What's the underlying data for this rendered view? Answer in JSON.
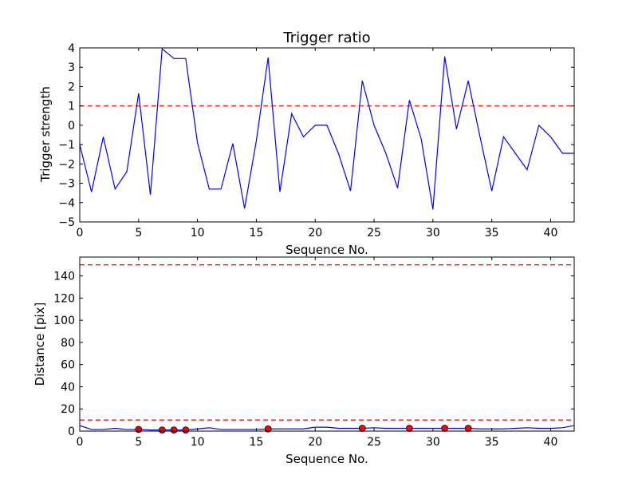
{
  "chart_data": [
    {
      "type": "line",
      "title": "Trigger ratio",
      "xlabel": "Sequence No.",
      "ylabel": "Trigger strength",
      "xlim": [
        0,
        42
      ],
      "ylim": [
        -5,
        4
      ],
      "xticks": [
        0,
        5,
        10,
        15,
        20,
        25,
        30,
        35,
        40
      ],
      "xtick_labels": [
        "0",
        "5",
        "10",
        "15",
        "20",
        "25",
        "30",
        "35",
        "40"
      ],
      "yticks": [
        -5,
        -4,
        -3,
        -2,
        -1,
        0,
        1,
        2,
        3,
        4
      ],
      "ytick_labels": [
        "−5",
        "−4",
        "−3",
        "−2",
        "−1",
        "0",
        "1",
        "2",
        "3",
        "4"
      ],
      "grid": false,
      "series": [
        {
          "color": "#0000ff",
          "x": [
            0,
            1,
            2,
            3,
            4,
            5,
            6,
            7,
            8,
            9,
            10,
            11,
            12,
            13,
            14,
            15,
            16,
            17,
            18,
            19,
            20,
            21,
            22,
            23,
            24,
            25,
            26,
            27,
            28,
            29,
            30,
            31,
            32,
            33,
            34,
            35,
            36,
            37,
            38,
            39,
            40,
            41,
            42
          ],
          "y": [
            -1.0,
            -3.45,
            -0.6,
            -3.3,
            -2.4,
            1.65,
            -3.6,
            3.95,
            3.45,
            3.45,
            -0.9,
            -3.3,
            -3.3,
            -0.95,
            -4.3,
            -0.8,
            3.5,
            -3.45,
            0.6,
            -0.6,
            0.0,
            0.0,
            -1.5,
            -3.4,
            2.3,
            0.0,
            -1.45,
            -3.25,
            1.3,
            -0.7,
            -4.35,
            3.55,
            -0.2,
            2.3,
            -0.6,
            -3.4,
            -0.6,
            -1.45,
            -2.3,
            0.0,
            -0.6,
            -1.45,
            -1.45
          ]
        }
      ],
      "hlines": [
        {
          "y": 1,
          "color": "#ff0000",
          "style": "dashed"
        }
      ]
    },
    {
      "type": "line",
      "title": "",
      "xlabel": "Sequence No.",
      "ylabel": "Distance [pix]",
      "xlim": [
        0,
        42
      ],
      "ylim": [
        0,
        157
      ],
      "xticks": [
        0,
        5,
        10,
        15,
        20,
        25,
        30,
        35,
        40
      ],
      "xtick_labels": [
        "0",
        "5",
        "10",
        "15",
        "20",
        "25",
        "30",
        "35",
        "40"
      ],
      "yticks": [
        0,
        20,
        40,
        60,
        80,
        100,
        120,
        140
      ],
      "ytick_labels": [
        "0",
        "20",
        "40",
        "60",
        "80",
        "100",
        "120",
        "140"
      ],
      "grid": false,
      "series": [
        {
          "color": "#0000ff",
          "x": [
            0,
            1,
            2,
            3,
            4,
            5,
            6,
            7,
            8,
            9,
            10,
            11,
            12,
            13,
            14,
            15,
            16,
            17,
            18,
            19,
            20,
            21,
            22,
            23,
            24,
            25,
            26,
            27,
            28,
            29,
            30,
            31,
            32,
            33,
            34,
            35,
            36,
            37,
            38,
            39,
            40,
            41,
            42
          ],
          "y": [
            5,
            1.5,
            1.5,
            2.5,
            1.5,
            1.5,
            1,
            1,
            1,
            1,
            2,
            3,
            1.5,
            1.5,
            1.5,
            1.5,
            2,
            2,
            2,
            2,
            3.5,
            3.5,
            2.5,
            2.5,
            2.5,
            3,
            2.5,
            2.5,
            2.5,
            2.5,
            2.5,
            2.5,
            2.5,
            2.5,
            2,
            2,
            2,
            2.5,
            3,
            2.5,
            2.5,
            3,
            5
          ]
        }
      ],
      "markers": {
        "color": "#ff0000",
        "x": [
          5,
          7,
          8,
          9,
          16,
          24,
          28,
          31,
          33
        ],
        "y": [
          1.5,
          1,
          1,
          1,
          2,
          2.5,
          2.5,
          2.5,
          2.5
        ]
      },
      "hlines": [
        {
          "y": 150,
          "color": "#ff0000",
          "style": "dashed"
        },
        {
          "y": 10,
          "color": "#ff0000",
          "style": "dashed"
        }
      ]
    }
  ]
}
